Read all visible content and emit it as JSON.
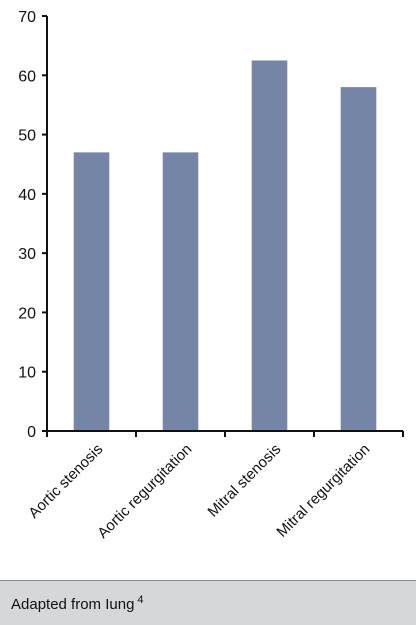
{
  "chart_data": {
    "type": "bar",
    "categories": [
      "Aortic stenosis",
      "Aortic regurgitation",
      "Mitral stenosis",
      "Mitral regurgitation"
    ],
    "values": [
      47,
      47,
      62.5,
      58
    ],
    "title": "",
    "xlabel": "",
    "ylabel": "",
    "ylim": [
      0,
      70
    ],
    "yticks": [
      "0",
      "10",
      "20",
      "30",
      "40",
      "50",
      "60",
      "70"
    ],
    "grid": false,
    "legend": "none",
    "bar_color": "#7485a6",
    "axis_color": "#111111"
  },
  "footer": {
    "source_text": "Adapted from Iung",
    "reference": "4",
    "background_color": "#d5d7d8"
  }
}
